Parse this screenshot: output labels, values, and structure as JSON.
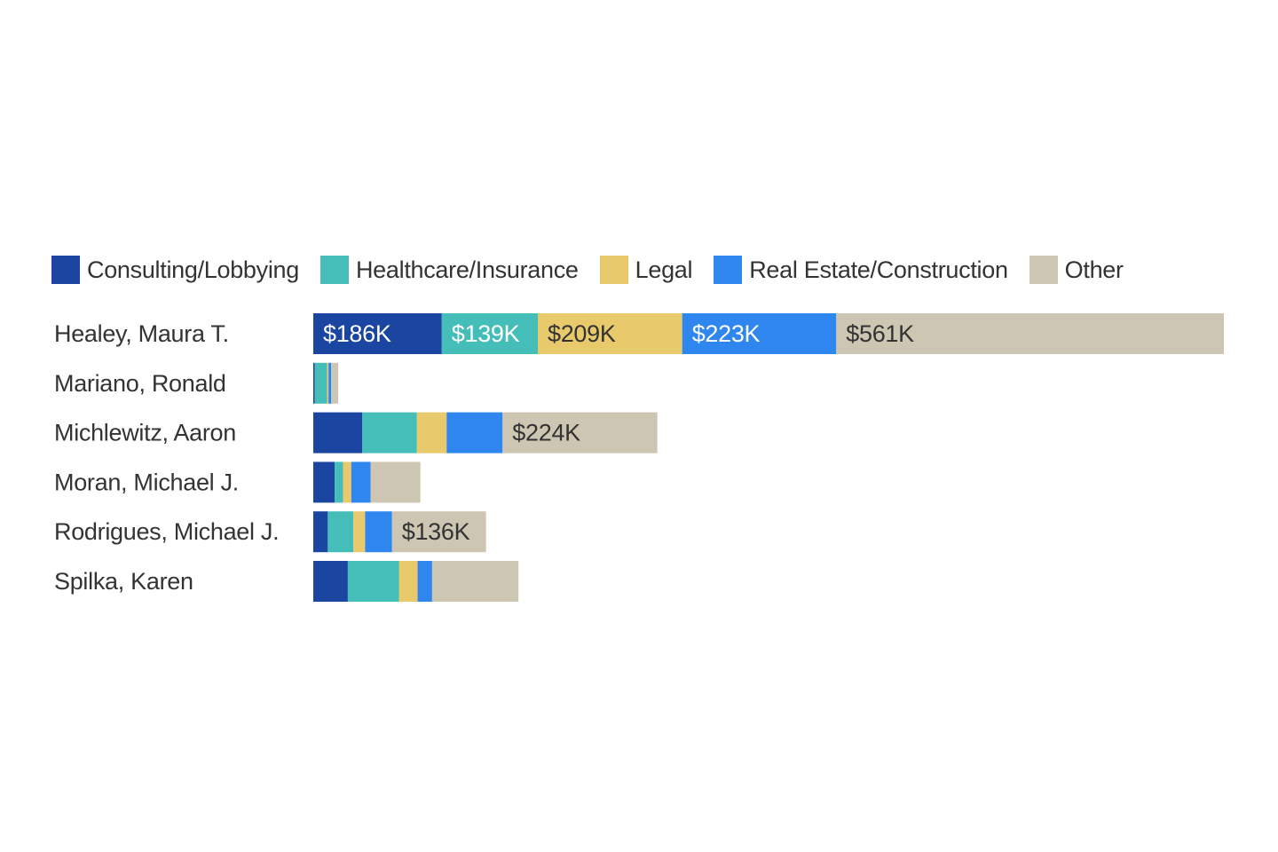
{
  "chart_data": {
    "type": "bar",
    "orientation": "horizontal",
    "stacked": true,
    "legend_position": "top",
    "grid": false,
    "unit": "$K",
    "categories": [
      "Healey, Maura T.",
      "Mariano, Ronald",
      "Michlewitz, Aaron",
      "Moran, Michael J.",
      "Rodrigues, Michael J.",
      "Spilka, Karen"
    ],
    "series": [
      {
        "name": "Consulting/Lobbying",
        "color": "#1a45a0",
        "values": [
          186,
          2,
          71,
          31,
          21,
          50
        ],
        "labels": [
          "$186K",
          "",
          "",
          "",
          "",
          ""
        ]
      },
      {
        "name": "Healthcare/Insurance",
        "color": "#45bdb8",
        "values": [
          139,
          18,
          79,
          12,
          37,
          74
        ],
        "labels": [
          "$139K",
          "",
          "",
          "",
          "",
          ""
        ]
      },
      {
        "name": "Legal",
        "color": "#e8c96b",
        "values": [
          209,
          2,
          43,
          12,
          17,
          27
        ],
        "labels": [
          "$209K",
          "",
          "",
          "",
          "",
          ""
        ]
      },
      {
        "name": "Real Estate/Construction",
        "color": "#2f86ee",
        "values": [
          223,
          4,
          81,
          28,
          39,
          21
        ],
        "labels": [
          "$223K",
          "",
          "",
          "",
          "",
          ""
        ]
      },
      {
        "name": "Other",
        "color": "#cdc6b2",
        "values": [
          561,
          10,
          224,
          72,
          136,
          125
        ],
        "labels": [
          "$561K",
          "",
          "$224K",
          "",
          "$136K",
          ""
        ]
      }
    ],
    "label_colors": [
      "#ffffff",
      "#ffffff",
      "#333333",
      "#ffffff",
      "#333333"
    ],
    "xlim": [
      0,
      1318
    ]
  }
}
